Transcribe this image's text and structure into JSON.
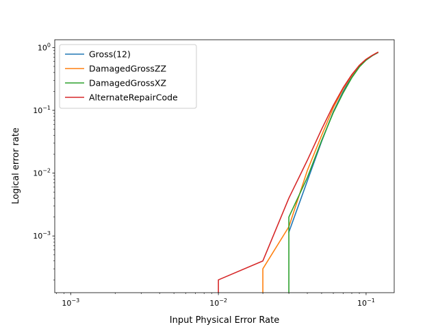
{
  "chart_data": {
    "type": "line",
    "title": "",
    "xlabel": "Input Physical Error Rate",
    "ylabel": "Logical error rate",
    "xscale": "log",
    "yscale": "log",
    "xlim": [
      0.00078,
      0.155
    ],
    "ylim": [
      0.000125,
      1.33
    ],
    "x_ticks": [
      {
        "value": 0.001,
        "base": "10",
        "exp": "−3"
      },
      {
        "value": 0.01,
        "base": "10",
        "exp": "−2"
      },
      {
        "value": 0.1,
        "base": "10",
        "exp": "−1"
      }
    ],
    "y_ticks": [
      {
        "value": 0.001,
        "base": "10",
        "exp": "−3"
      },
      {
        "value": 0.01,
        "base": "10",
        "exp": "−2"
      },
      {
        "value": 0.1,
        "base": "10",
        "exp": "−1"
      },
      {
        "value": 1,
        "base": "10",
        "exp": "0"
      }
    ],
    "grid": false,
    "legend": "upper-left",
    "series": [
      {
        "name": "Gross(12)",
        "color": "#1f77b4",
        "x": [
          0.03,
          0.04,
          0.05,
          0.06,
          0.07,
          0.08,
          0.09,
          0.1,
          0.11,
          0.12
        ],
        "y": [
          0.00115,
          0.0075,
          0.032,
          0.095,
          0.2,
          0.35,
          0.5,
          0.63,
          0.74,
          0.83
        ]
      },
      {
        "name": "DamagedGrossZZ",
        "color": "#ff7f0e",
        "x": [
          0.02,
          0.02,
          0.03,
          0.04,
          0.05,
          0.06,
          0.07,
          0.08,
          0.09,
          0.1,
          0.11,
          0.12
        ],
        "y": [
          0.000125,
          0.0003,
          0.0014,
          0.011,
          0.04,
          0.11,
          0.22,
          0.36,
          0.52,
          0.65,
          0.75,
          0.84
        ]
      },
      {
        "name": "DamagedGrossXZ",
        "color": "#2ca02c",
        "x": [
          0.03,
          0.03,
          0.04,
          0.05,
          0.06,
          0.07,
          0.08,
          0.09,
          0.1,
          0.11,
          0.12
        ],
        "y": [
          0.000125,
          0.002,
          0.0085,
          0.033,
          0.092,
          0.19,
          0.33,
          0.49,
          0.63,
          0.74,
          0.83
        ]
      },
      {
        "name": " AlternateRepairCode",
        "color": "#d62728",
        "x": [
          0.01,
          0.01,
          0.02,
          0.03,
          0.04,
          0.05,
          0.06,
          0.07,
          0.08,
          0.09,
          0.1,
          0.11,
          0.12
        ],
        "y": [
          0.000125,
          0.0002,
          0.0004,
          0.004,
          0.016,
          0.05,
          0.12,
          0.23,
          0.37,
          0.52,
          0.65,
          0.75,
          0.84
        ]
      }
    ]
  }
}
